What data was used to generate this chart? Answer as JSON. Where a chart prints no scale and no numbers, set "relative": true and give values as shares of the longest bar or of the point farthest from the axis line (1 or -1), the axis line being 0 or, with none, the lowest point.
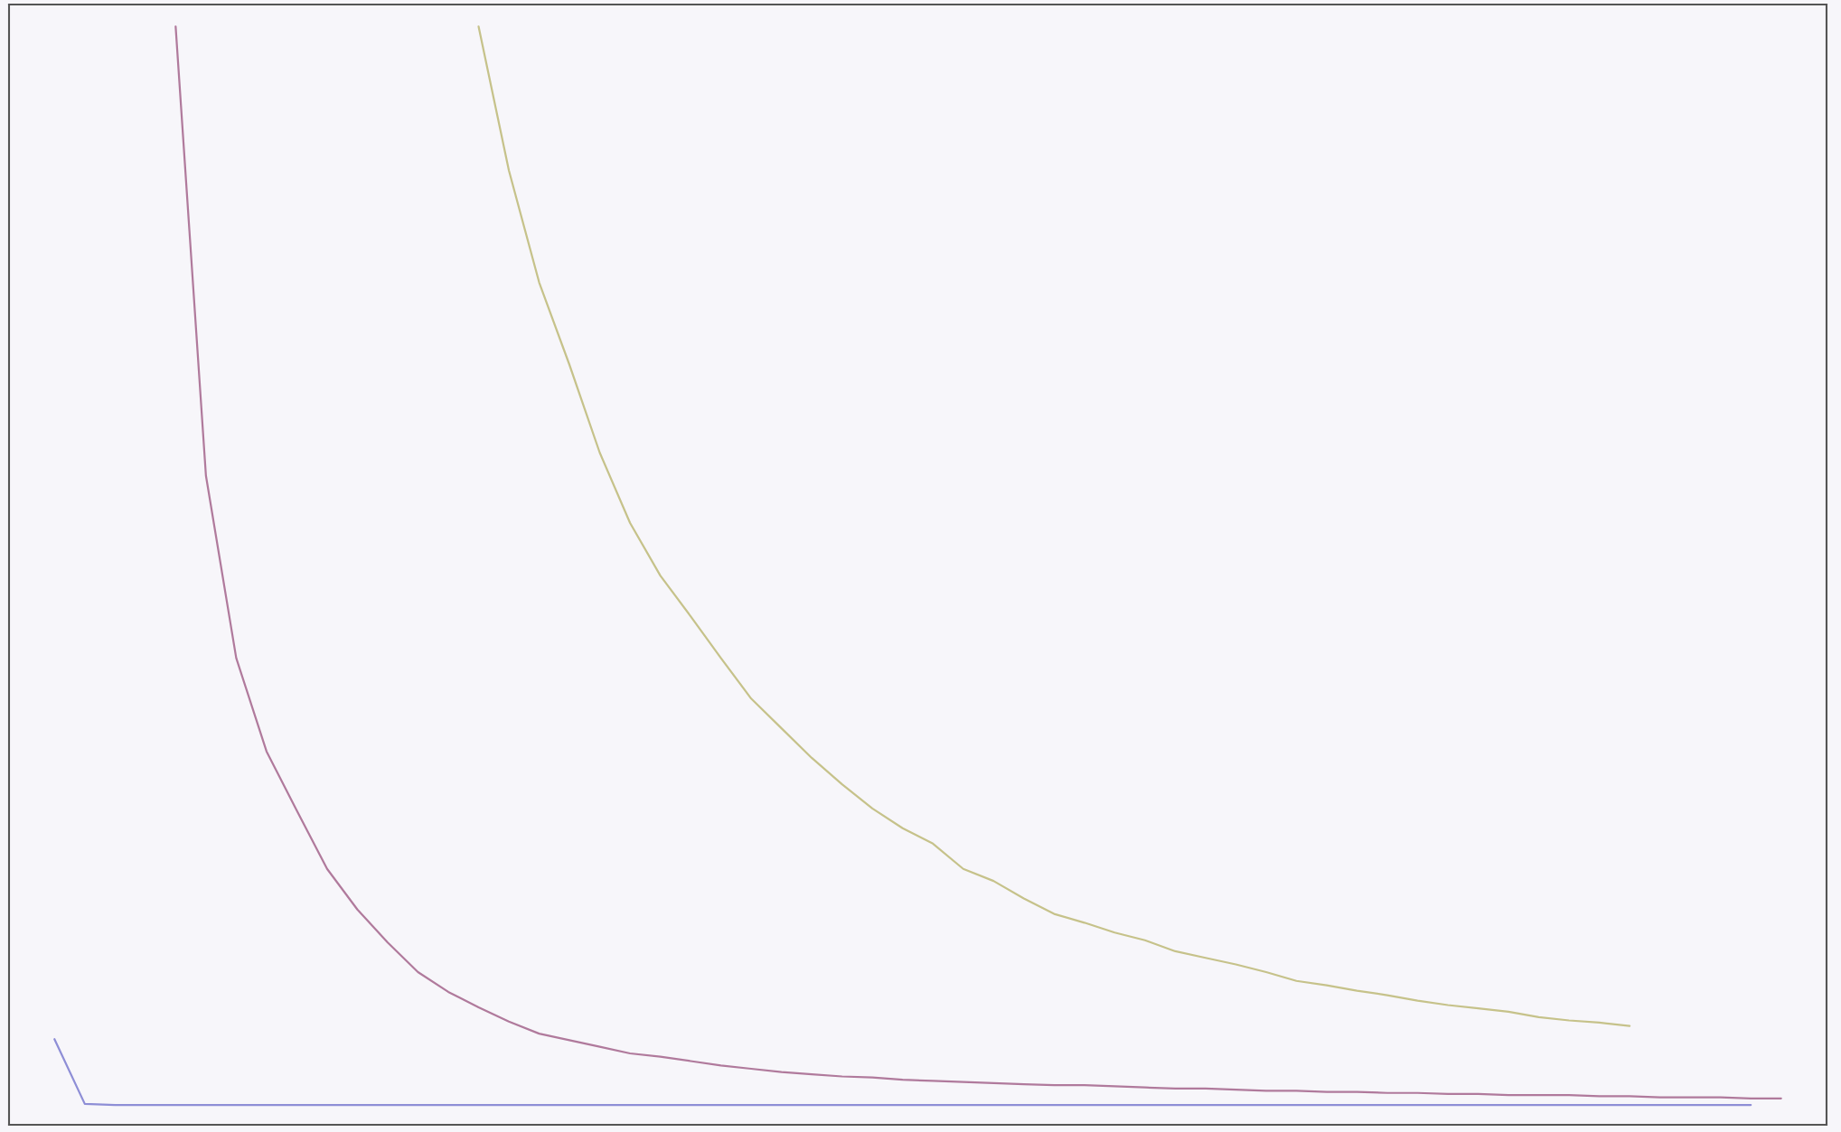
{
  "chart_data": {
    "type": "line",
    "relative": true,
    "grid": false,
    "legend": false,
    "categories": [
      null,
      null,
      null,
      null,
      null,
      null,
      null,
      null,
      null,
      null,
      null,
      null,
      null,
      null,
      null,
      null,
      null,
      null,
      null,
      null,
      null,
      null,
      null,
      null,
      null,
      null,
      null,
      null,
      null,
      null,
      null,
      null,
      null,
      null,
      null,
      null,
      null,
      null,
      null,
      null,
      null,
      null,
      null,
      null,
      null,
      null,
      null,
      null,
      null,
      null,
      null,
      null,
      null,
      null,
      null,
      null,
      null,
      null,
      null,
      null
    ],
    "series": [
      {
        "color": "#8e8ed6",
        "values": [
          null,
          0.078,
          0.019,
          0.018,
          0.018,
          0.018,
          0.018,
          0.018,
          0.018,
          0.018,
          0.018,
          0.018,
          0.018,
          0.018,
          0.018,
          0.018,
          0.018,
          0.018,
          0.018,
          0.018,
          0.018,
          0.018,
          0.018,
          0.018,
          0.018,
          0.018,
          0.018,
          0.018,
          0.018,
          0.018,
          0.018,
          0.018,
          0.018,
          0.018,
          0.018,
          0.018,
          0.018,
          0.018,
          0.018,
          0.018,
          0.018,
          0.018,
          0.018,
          0.018,
          0.018,
          0.018,
          0.018,
          0.018,
          0.018,
          0.018,
          0.018,
          0.018,
          0.018,
          0.018,
          0.018,
          0.018,
          0.018,
          0.018,
          null,
          null
        ]
      },
      {
        "color": "#b07a9c",
        "values": [
          null,
          null,
          null,
          null,
          null,
          1.0,
          0.591,
          0.425,
          0.34,
          0.286,
          0.233,
          0.196,
          0.166,
          0.139,
          0.121,
          0.107,
          0.094,
          0.083,
          0.077,
          0.071,
          0.065,
          0.062,
          0.058,
          0.054,
          0.051,
          0.048,
          0.046,
          0.044,
          0.043,
          0.041,
          0.04,
          0.039,
          0.038,
          0.037,
          0.036,
          0.036,
          0.035,
          0.034,
          0.033,
          0.033,
          0.032,
          0.031,
          0.031,
          0.03,
          0.03,
          0.029,
          0.029,
          0.028,
          0.028,
          0.027,
          0.027,
          0.027,
          0.026,
          0.026,
          0.025,
          0.025,
          0.025,
          0.024,
          0.024,
          null
        ]
      },
      {
        "color": "#c6c28a",
        "values": [
          null,
          null,
          null,
          null,
          null,
          null,
          null,
          null,
          null,
          null,
          null,
          null,
          null,
          null,
          null,
          1.0,
          0.869,
          0.767,
          0.692,
          0.612,
          0.548,
          0.5,
          0.463,
          0.425,
          0.388,
          0.361,
          0.334,
          0.31,
          0.288,
          0.27,
          0.256,
          0.233,
          0.222,
          0.206,
          0.192,
          0.184,
          0.175,
          0.168,
          0.158,
          0.152,
          0.146,
          0.139,
          0.131,
          0.127,
          0.122,
          0.118,
          0.113,
          0.109,
          0.106,
          0.103,
          0.098,
          0.095,
          0.093,
          0.09,
          null,
          null,
          null,
          null,
          null,
          null
        ]
      }
    ]
  }
}
